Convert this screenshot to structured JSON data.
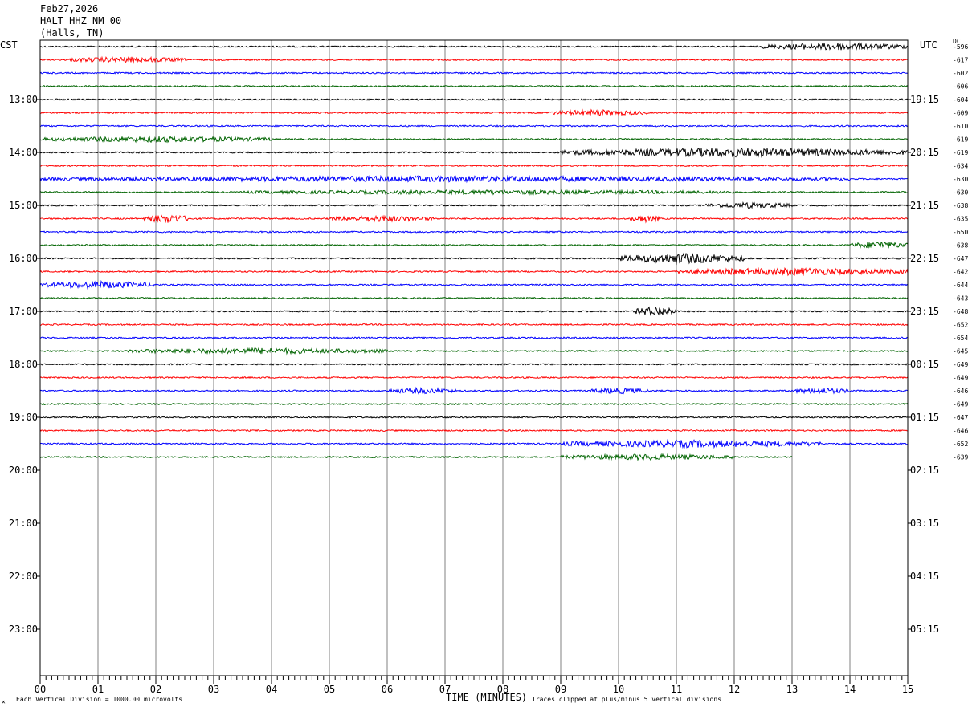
{
  "header": {
    "date": "Feb27,2026",
    "station": "HALT HHZ NM 00",
    "location": "(Halls, TN)"
  },
  "left_axis_label": "CST",
  "right_axis_label": "UTC",
  "dc_label": "DC",
  "footer": {
    "scale_note": "Each Vertical Division = 1000.00 microvolts",
    "clip_note": "Traces clipped at plus/minus 5 vertical divisions",
    "corner_mark": "✕"
  },
  "chart_data": {
    "type": "line",
    "title": "",
    "xlabel": "TIME (MINUTES)",
    "xlim": [
      0,
      15
    ],
    "x_ticks": [
      "00",
      "01",
      "02",
      "03",
      "04",
      "05",
      "06",
      "07",
      "08",
      "09",
      "10",
      "11",
      "12",
      "13",
      "14",
      "15"
    ],
    "left_hour_labels": [
      "13:00",
      "14:00",
      "15:00",
      "16:00",
      "17:00",
      "18:00",
      "19:00",
      "20:00",
      "21:00",
      "22:00",
      "23:00"
    ],
    "right_hour_labels": [
      "19:15",
      "20:15",
      "21:15",
      "22:15",
      "23:15",
      "00:15",
      "01:15",
      "02:15",
      "03:15",
      "04:15",
      "05:15"
    ],
    "trace_colors": [
      "#000000",
      "#ff0000",
      "#0000ff",
      "#006400"
    ],
    "dc_values": [
      "-596",
      "-617",
      "-602",
      "-606",
      "-604",
      "-609",
      "-610",
      "-619",
      "-619",
      "-634",
      "-630",
      "-630",
      "-638",
      "-635",
      "-650",
      "-638",
      "-647",
      "-642",
      "-644",
      "-643",
      "-648",
      "-652",
      "-654",
      "-645",
      "-649",
      "-649",
      "-646",
      "-649",
      "-647",
      "-646",
      "-652",
      "-639"
    ],
    "trace_count": 32,
    "last_trace_end_minute": 13,
    "activity_bursts": [
      {
        "trace": 0,
        "start": 12.5,
        "end": 15,
        "amp": 4
      },
      {
        "trace": 1,
        "start": 0.5,
        "end": 2.5,
        "amp": 3
      },
      {
        "trace": 5,
        "start": 8.8,
        "end": 10.5,
        "amp": 3
      },
      {
        "trace": 7,
        "start": 0,
        "end": 4,
        "amp": 3
      },
      {
        "trace": 8,
        "start": 9,
        "end": 15,
        "amp": 5
      },
      {
        "trace": 10,
        "start": 0,
        "end": 14,
        "amp": 3
      },
      {
        "trace": 11,
        "start": 3.5,
        "end": 12,
        "amp": 2
      },
      {
        "trace": 12,
        "start": 11.5,
        "end": 13,
        "amp": 3
      },
      {
        "trace": 13,
        "start": 1.8,
        "end": 2.6,
        "amp": 5
      },
      {
        "trace": 13,
        "start": 5,
        "end": 6.8,
        "amp": 3
      },
      {
        "trace": 13,
        "start": 10.2,
        "end": 10.7,
        "amp": 4
      },
      {
        "trace": 15,
        "start": 14,
        "end": 15,
        "amp": 4
      },
      {
        "trace": 16,
        "start": 10,
        "end": 12.2,
        "amp": 6
      },
      {
        "trace": 17,
        "start": 11,
        "end": 15,
        "amp": 4
      },
      {
        "trace": 18,
        "start": 0,
        "end": 2,
        "amp": 4
      },
      {
        "trace": 20,
        "start": 10.3,
        "end": 11,
        "amp": 6
      },
      {
        "trace": 23,
        "start": 1.5,
        "end": 6,
        "amp": 3
      },
      {
        "trace": 26,
        "start": 6,
        "end": 7.2,
        "amp": 3
      },
      {
        "trace": 26,
        "start": 9.5,
        "end": 10.5,
        "amp": 3
      },
      {
        "trace": 26,
        "start": 13,
        "end": 14,
        "amp": 3
      },
      {
        "trace": 30,
        "start": 9,
        "end": 13.5,
        "amp": 4
      },
      {
        "trace": 31,
        "start": 9,
        "end": 12,
        "amp": 3
      }
    ]
  }
}
